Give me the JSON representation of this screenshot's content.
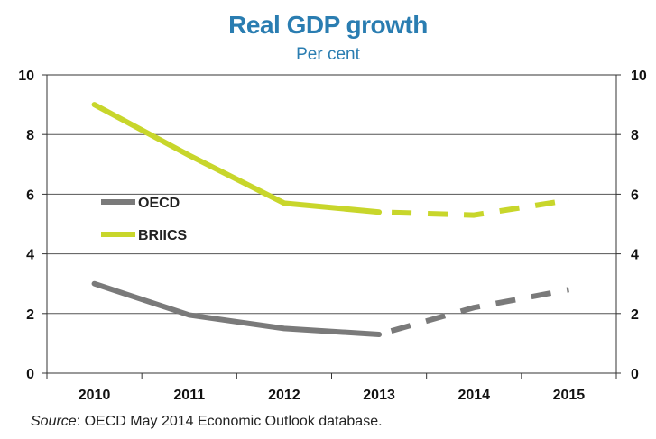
{
  "chart_data": {
    "type": "line",
    "title": "Real GDP growth",
    "subtitle": "Per cent",
    "categories": [
      "2010",
      "2011",
      "2012",
      "2013",
      "2014",
      "2015"
    ],
    "ylim": [
      0,
      10
    ],
    "yticks": [
      0,
      2,
      4,
      6,
      8,
      10
    ],
    "ytick_labels": [
      "0",
      "2",
      "4",
      "6",
      "8",
      "10"
    ],
    "secondary_yaxis": true,
    "grid": true,
    "legend_position": "center-left",
    "projection_start": "2013",
    "projection_style": "dashed",
    "series": [
      {
        "name": "OECD",
        "color": "#7a7a7a",
        "values": [
          3.0,
          1.95,
          1.5,
          1.3,
          2.2,
          2.8
        ]
      },
      {
        "name": "BRIICS",
        "color": "#c8d62b",
        "values": [
          9.0,
          7.3,
          5.7,
          5.4,
          5.3,
          5.8
        ]
      }
    ]
  },
  "source": {
    "prefix": "Source",
    "text": ": OECD May 2014 Economic Outlook database."
  }
}
